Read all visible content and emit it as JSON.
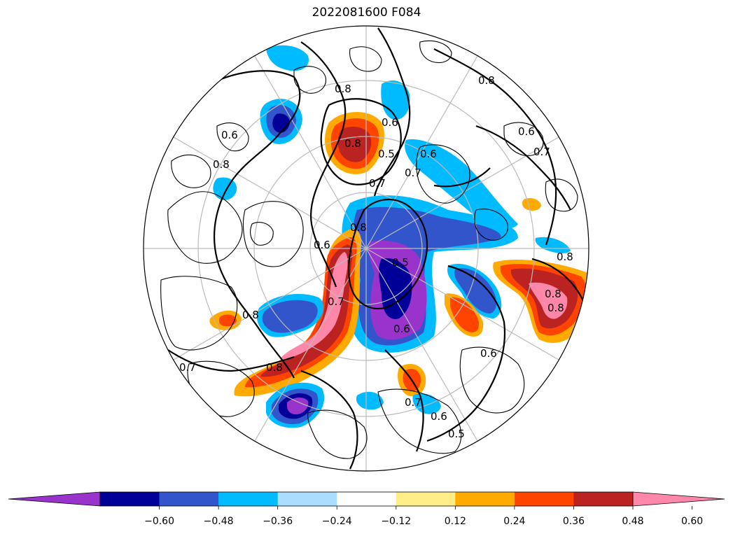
{
  "title": "2022081600 F084",
  "colorbar": {
    "under_color": "#9933cc",
    "over_color": "#ff88aa",
    "bins": [
      "#9933cc",
      "#000099",
      "#3355cc",
      "#00bbff",
      "#aaddff",
      "#ffffff",
      "#ffee88",
      "#ffaa00",
      "#ff4400",
      "#bb2222",
      "#ff88aa"
    ],
    "ticks": [
      "−0.60",
      "−0.48",
      "−0.36",
      "−0.24",
      "−0.12",
      "0.12",
      "0.24",
      "0.36",
      "0.48",
      "0.60"
    ]
  },
  "contour_labels": [
    "0.8",
    "0.8",
    "0.6",
    "0.7",
    "0.6",
    "0.8",
    "0.6",
    "0.5",
    "0.7",
    "0.7",
    "0.6",
    "0.8",
    "0.8",
    "0.6",
    "0.8",
    "0.7",
    "0.5",
    "0.6",
    "0.7",
    "0.8",
    "0.8",
    "0.6",
    "0.5",
    "0.8",
    "0.7",
    "0.8",
    "0.6"
  ]
}
